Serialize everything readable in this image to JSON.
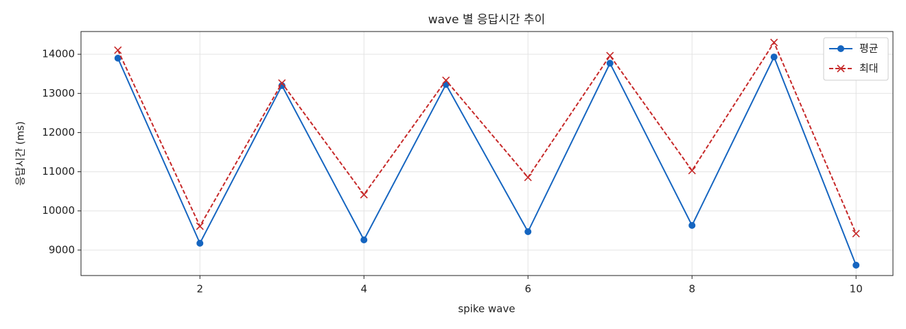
{
  "chart_data": {
    "type": "line",
    "title": "wave 별 응답시간 추이",
    "x_label": "spike wave",
    "y_label": "응답시간 (ms)",
    "x": [
      1,
      2,
      3,
      4,
      5,
      6,
      7,
      8,
      9,
      10
    ],
    "series": [
      {
        "name": "평균",
        "color": "#1565c0",
        "marker": "o",
        "linestyle": "solid",
        "values": [
          13900,
          9175,
          13200,
          9260,
          13230,
          9470,
          13770,
          9630,
          13930,
          8615
        ]
      },
      {
        "name": "최대",
        "color": "#c62828",
        "marker": "x",
        "linestyle": "dashed",
        "values": [
          14105,
          9610,
          13265,
          10415,
          13335,
          10855,
          13965,
          11030,
          14300,
          9420
        ]
      }
    ],
    "xlim": [
      0.55,
      10.45
    ],
    "xticks": [
      2,
      4,
      6,
      8,
      10
    ],
    "ylim": [
      8350,
      14580
    ],
    "yticks": [
      9000,
      10000,
      11000,
      12000,
      13000,
      14000
    ],
    "grid": true,
    "legend": "upper right"
  }
}
